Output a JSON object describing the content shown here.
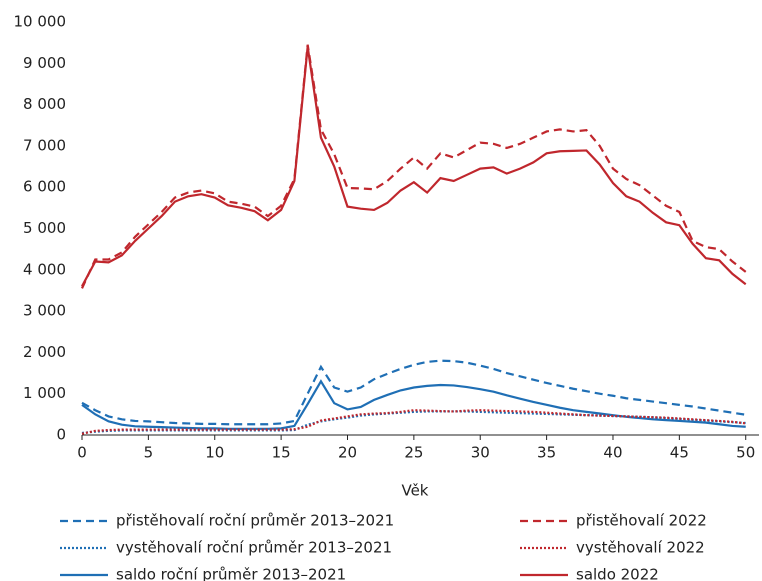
{
  "chart_data": {
    "type": "line",
    "xlabel": "Věk",
    "x": [
      0,
      1,
      2,
      3,
      4,
      5,
      6,
      7,
      8,
      9,
      10,
      11,
      12,
      13,
      14,
      15,
      16,
      17,
      18,
      19,
      20,
      21,
      22,
      23,
      24,
      25,
      26,
      27,
      28,
      29,
      30,
      31,
      32,
      33,
      34,
      35,
      36,
      37,
      38,
      39,
      40,
      41,
      42,
      43,
      44,
      45,
      46,
      47,
      48,
      49,
      50
    ],
    "xlim": [
      0,
      51
    ],
    "xticks": [
      0,
      5,
      10,
      15,
      20,
      25,
      30,
      35,
      40,
      45,
      50
    ],
    "ylim": [
      0,
      10000
    ],
    "yticks": [
      0,
      {
        "value": 1000,
        "label": "1 000"
      },
      {
        "value": 2000,
        "label": "2 000"
      },
      {
        "value": 3000,
        "label": "3 000"
      },
      {
        "value": 4000,
        "label": "4 000"
      },
      {
        "value": 5000,
        "label": "5 000"
      },
      {
        "value": 6000,
        "label": "6 000"
      },
      {
        "value": 7000,
        "label": "7 000"
      },
      {
        "value": 8000,
        "label": "8 000"
      },
      {
        "value": 9000,
        "label": "9 000"
      },
      {
        "value": 10000,
        "label": "10 000"
      }
    ],
    "grid": false,
    "series": [
      {
        "name": "přistěhovalí roční průměr 2013–2021",
        "color": "#1f6fb5",
        "dash": "dashed",
        "values": [
          780,
          600,
          450,
          380,
          340,
          330,
          310,
          290,
          280,
          270,
          270,
          260,
          260,
          260,
          260,
          280,
          340,
          1000,
          1650,
          1150,
          1050,
          1150,
          1350,
          1480,
          1600,
          1700,
          1770,
          1800,
          1790,
          1750,
          1680,
          1600,
          1500,
          1420,
          1340,
          1260,
          1190,
          1120,
          1060,
          1000,
          950,
          890,
          850,
          810,
          770,
          730,
          690,
          640,
          590,
          540,
          490
        ]
      },
      {
        "name": "vystěhovalí roční průměr 2013–2021",
        "color": "#1f6fb5",
        "dash": "dotted",
        "values": [
          50,
          80,
          100,
          110,
          110,
          110,
          110,
          110,
          110,
          110,
          110,
          110,
          110,
          110,
          110,
          110,
          120,
          250,
          330,
          380,
          420,
          470,
          500,
          520,
          540,
          560,
          570,
          570,
          570,
          570,
          560,
          550,
          540,
          530,
          520,
          510,
          500,
          490,
          480,
          470,
          460,
          450,
          440,
          430,
          410,
          390,
          370,
          350,
          330,
          310,
          290
        ]
      },
      {
        "name": "saldo roční průměr 2013–2021",
        "color": "#1f6fb5",
        "dash": "solid",
        "values": [
          730,
          500,
          330,
          250,
          210,
          200,
          190,
          180,
          170,
          160,
          160,
          150,
          150,
          150,
          150,
          160,
          220,
          750,
          1300,
          770,
          620,
          680,
          850,
          970,
          1080,
          1150,
          1190,
          1210,
          1200,
          1160,
          1110,
          1050,
          960,
          880,
          800,
          730,
          660,
          600,
          560,
          520,
          480,
          440,
          410,
          380,
          360,
          340,
          320,
          300,
          260,
          220,
          200
        ]
      },
      {
        "name": "přistěhovalí 2022",
        "color": "#c0272d",
        "dash": "dashed",
        "values": [
          3550,
          4250,
          4250,
          4420,
          4800,
          5100,
          5400,
          5750,
          5870,
          5920,
          5850,
          5650,
          5600,
          5530,
          5300,
          5550,
          6200,
          9450,
          7400,
          6800,
          5980,
          5970,
          5950,
          6150,
          6450,
          6720,
          6450,
          6820,
          6720,
          6900,
          7080,
          7050,
          6950,
          7050,
          7200,
          7350,
          7400,
          7350,
          7380,
          7000,
          6450,
          6200,
          6050,
          5800,
          5550,
          5400,
          4700,
          4550,
          4500,
          4200,
          3950
        ]
      },
      {
        "name": "vystěhovalí 2022",
        "color": "#c0272d",
        "dash": "dotted",
        "values": [
          30,
          100,
          120,
          130,
          130,
          130,
          130,
          130,
          130,
          130,
          130,
          130,
          130,
          130,
          130,
          130,
          140,
          200,
          350,
          400,
          450,
          500,
          520,
          530,
          560,
          600,
          590,
          580,
          570,
          590,
          600,
          590,
          580,
          570,
          560,
          540,
          520,
          500,
          480,
          470,
          460,
          450,
          440,
          430,
          420,
          400,
          380,
          360,
          340,
          320,
          280
        ]
      },
      {
        "name": "saldo 2022",
        "color": "#c0272d",
        "dash": "solid",
        "values": [
          3600,
          4200,
          4180,
          4350,
          4700,
          5000,
          5300,
          5650,
          5780,
          5830,
          5750,
          5560,
          5500,
          5420,
          5200,
          5450,
          6150,
          9400,
          7200,
          6500,
          5530,
          5480,
          5450,
          5620,
          5920,
          6120,
          5870,
          6220,
          6150,
          6300,
          6450,
          6480,
          6330,
          6450,
          6600,
          6820,
          6870,
          6880,
          6890,
          6550,
          6100,
          5780,
          5650,
          5380,
          5150,
          5080,
          4630,
          4280,
          4230,
          3900,
          3650
        ]
      }
    ]
  }
}
